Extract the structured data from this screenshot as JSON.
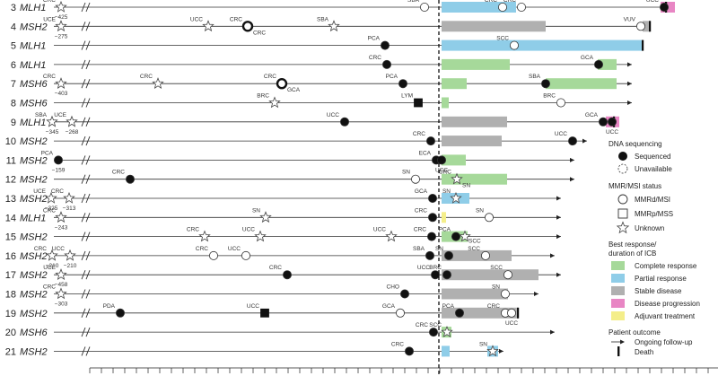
{
  "chart_data": {
    "type": "swimmer",
    "legend": {
      "dna_header": "DNA sequencing",
      "dna_items": [
        "Sequenced",
        "Unavailable"
      ],
      "mmr_header": "MMR/MSI status",
      "mmr_items": [
        "MMRd/MSI",
        "MMRp/MSS",
        "Unknown"
      ],
      "response_header": "Best response/\nduration of ICB",
      "response_items": [
        {
          "label": "Complete response",
          "color": "#a6d99a"
        },
        {
          "label": "Partial response",
          "color": "#8fcde8"
        },
        {
          "label": "Stable disease",
          "color": "#b0b0b0"
        },
        {
          "label": "Disease progression",
          "color": "#e886c4"
        },
        {
          "label": "Adjuvant treatment",
          "color": "#f4ee8a"
        }
      ],
      "outcome_header": "Patient outcome",
      "outcome_items": [
        "Ongoing follow-up",
        "Death"
      ]
    },
    "patients": [
      {
        "id": "3",
        "gene": "MLH1",
        "line_end": 752,
        "segments": [
          {
            "x0": 492,
            "x1": 575,
            "resp": "partial"
          },
          {
            "x0": 736,
            "x1": 752,
            "resp": "progression"
          }
        ],
        "end": "death",
        "end_x": 742,
        "events": [
          {
            "x": 68,
            "s": "star",
            "f": false,
            "l": "CRC",
            "n": "−425",
            "lp": "up"
          },
          {
            "x": 473,
            "s": "circle",
            "f": false,
            "l": "SBA",
            "lp": "up"
          },
          {
            "x": 560,
            "s": "circle",
            "f": false,
            "l": "CRC",
            "lp": "up"
          },
          {
            "x": 581,
            "s": "circle",
            "f": false,
            "l": "CRC",
            "lp": "up"
          },
          {
            "x": 740,
            "s": "circle",
            "f": true,
            "l": "UCC",
            "lp": "up"
          }
        ]
      },
      {
        "id": "4",
        "gene": "MSH2",
        "line_end": 724,
        "segments": [
          {
            "x0": 492,
            "x1": 608,
            "resp": "stable"
          },
          {
            "x0": 716,
            "x1": 724,
            "resp": "stable"
          }
        ],
        "end": "death",
        "end_x": 724,
        "events": [
          {
            "x": 68,
            "s": "star",
            "f": false,
            "l": "UCE",
            "n": "−275",
            "lp": "up"
          },
          {
            "x": 232,
            "s": "star",
            "f": false,
            "l": "UCC",
            "lp": "up"
          },
          {
            "x": 276,
            "s": "circle-thick",
            "f": false,
            "l": "CRC",
            "l2": "CRC",
            "lp": "up"
          },
          {
            "x": 372,
            "s": "star",
            "f": false,
            "l": "SBA",
            "lp": "up"
          },
          {
            "x": 714,
            "s": "circle",
            "f": false,
            "l": "VUV",
            "lp": "up"
          }
        ]
      },
      {
        "id": "5",
        "gene": "MLH1",
        "line_end": 716,
        "segments": [
          {
            "x0": 492,
            "x1": 716,
            "resp": "partial"
          }
        ],
        "end": "death",
        "end_x": 716,
        "events": [
          {
            "x": 429,
            "s": "circle",
            "f": true,
            "l": "PCA",
            "lp": "up"
          },
          {
            "x": 573,
            "s": "circle",
            "f": false,
            "l": "SCC",
            "lp": "up"
          }
        ]
      },
      {
        "id": "6",
        "gene": "MLH1",
        "line_end": 704,
        "segments": [
          {
            "x0": 492,
            "x1": 568,
            "resp": "complete"
          },
          {
            "x0": 666,
            "x1": 687,
            "resp": "complete"
          }
        ],
        "end": "arrow",
        "end_x": 704,
        "events": [
          {
            "x": 431,
            "s": "circle",
            "f": true,
            "l": "CRC",
            "lp": "up"
          },
          {
            "x": 667,
            "s": "circle",
            "f": true,
            "l": "GCA",
            "lp": "up"
          }
        ]
      },
      {
        "id": "7",
        "gene": "MSH6",
        "line_end": 704,
        "segments": [
          {
            "x0": 492,
            "x1": 520,
            "resp": "complete"
          },
          {
            "x0": 608,
            "x1": 687,
            "resp": "complete"
          }
        ],
        "end": "arrow",
        "end_x": 704,
        "events": [
          {
            "x": 68,
            "s": "star",
            "f": false,
            "l": "CRC",
            "n": "−403",
            "lp": "up"
          },
          {
            "x": 176,
            "s": "star",
            "f": false,
            "l": "CRC",
            "lp": "up"
          },
          {
            "x": 314,
            "s": "circle-thick",
            "f": false,
            "l": "CRC",
            "l2": "GCA",
            "lp": "up"
          },
          {
            "x": 449,
            "s": "circle",
            "f": true,
            "l": "PCA",
            "lp": "up"
          },
          {
            "x": 608,
            "s": "circle",
            "f": true,
            "l": "SBA",
            "lp": "up"
          }
        ]
      },
      {
        "id": "8",
        "gene": "MSH6",
        "line_end": 704,
        "segments": [
          {
            "x0": 492,
            "x1": 500,
            "resp": "complete"
          }
        ],
        "end": "arrow",
        "end_x": 704,
        "events": [
          {
            "x": 306,
            "s": "star",
            "f": false,
            "l": "BRC",
            "lp": "up"
          },
          {
            "x": 466,
            "s": "square",
            "f": true,
            "l": "LYM",
            "lp": "up"
          },
          {
            "x": 625,
            "s": "circle",
            "f": false,
            "l": "BRC",
            "lp": "up"
          }
        ]
      },
      {
        "id": "9",
        "gene": "MLH1",
        "line_end": 690,
        "segments": [
          {
            "x0": 492,
            "x1": 565,
            "resp": "stable"
          },
          {
            "x0": 675,
            "x1": 690,
            "resp": "progression"
          }
        ],
        "end": "death",
        "end_x": 684,
        "events": [
          {
            "x": 58,
            "s": "star",
            "f": false,
            "l": "SBA",
            "n": "−345",
            "lp": "up"
          },
          {
            "x": 80,
            "s": "star",
            "f": false,
            "l": "UCE",
            "n": "−268",
            "lp": "up"
          },
          {
            "x": 384,
            "s": "circle",
            "f": true,
            "l": "UCC",
            "lp": "up"
          },
          {
            "x": 672,
            "s": "circle",
            "f": true,
            "l": "GCA",
            "lp": "up"
          },
          {
            "x": 682,
            "s": "circle",
            "f": true,
            "l": "UCC",
            "lp": "down"
          }
        ]
      },
      {
        "id": "10",
        "gene": "MSH2",
        "line_end": 654,
        "segments": [
          {
            "x0": 492,
            "x1": 559,
            "resp": "stable"
          }
        ],
        "end": "arrow",
        "end_x": 654,
        "events": [
          {
            "x": 480,
            "s": "circle",
            "f": true,
            "l": "CRC",
            "lp": "up"
          },
          {
            "x": 638,
            "s": "circle",
            "f": true,
            "l": "UCC",
            "lp": "up"
          }
        ]
      },
      {
        "id": "11",
        "gene": "MSH2",
        "line_end": 640,
        "segments": [
          {
            "x0": 492,
            "x1": 519,
            "resp": "complete"
          }
        ],
        "end": "arrow",
        "end_x": 640,
        "events": [
          {
            "x": 65,
            "s": "circle",
            "f": true,
            "l": "PCA",
            "n": "−159",
            "lp": "up"
          },
          {
            "x": 486,
            "s": "circle",
            "f": true,
            "l": "ECA",
            "lp": "up"
          },
          {
            "x": 492,
            "s": "circle",
            "f": true,
            "l": "UCC",
            "lp": "down"
          }
        ]
      },
      {
        "id": "12",
        "gene": "MSH2",
        "line_end": 640,
        "segments": [
          {
            "x0": 492,
            "x1": 565,
            "resp": "complete"
          }
        ],
        "end": "arrow",
        "end_x": 640,
        "events": [
          {
            "x": 145,
            "s": "circle",
            "f": true,
            "l": "CRC",
            "lp": "up"
          },
          {
            "x": 463,
            "s": "circle",
            "f": false,
            "l": "SN",
            "lp": "up"
          },
          {
            "x": 509,
            "s": "star",
            "f": false,
            "l": "CRC",
            "l2": "SN",
            "lp": "up"
          }
        ]
      },
      {
        "id": "13",
        "gene": "MSH2",
        "line_end": 625,
        "segments": [
          {
            "x0": 492,
            "x1": 523,
            "resp": "partial"
          }
        ],
        "end": "arrow",
        "end_x": 625,
        "events": [
          {
            "x": 57,
            "s": "star",
            "f": false,
            "l": "UCE",
            "n": "−325",
            "lp": "up"
          },
          {
            "x": 77,
            "s": "star",
            "f": false,
            "l": "CRC",
            "n": "−313",
            "lp": "up"
          },
          {
            "x": 482,
            "s": "circle",
            "f": true,
            "l": "GCA",
            "lp": "up"
          },
          {
            "x": 508,
            "s": "star",
            "f": false,
            "l": "SN",
            "lp": "up"
          }
        ]
      },
      {
        "id": "14",
        "gene": "MLH1",
        "line_end": 625,
        "segments": [
          {
            "x0": 492,
            "x1": 497,
            "resp": "adjuvant"
          }
        ],
        "end": "arrow",
        "end_x": 625,
        "events": [
          {
            "x": 68,
            "s": "star",
            "f": false,
            "l": "CRC",
            "n": "−243",
            "lp": "up"
          },
          {
            "x": 296,
            "s": "star",
            "f": false,
            "l": "SN",
            "lp": "up"
          },
          {
            "x": 482,
            "s": "circle",
            "f": true,
            "l": "CRC",
            "lp": "up"
          },
          {
            "x": 545,
            "s": "circle",
            "f": false,
            "l": "SN",
            "lp": "up"
          }
        ]
      },
      {
        "id": "15",
        "gene": "MSH2",
        "line_end": 625,
        "segments": [
          {
            "x0": 492,
            "x1": 521,
            "resp": "complete"
          }
        ],
        "end": "arrow",
        "end_x": 625,
        "events": [
          {
            "x": 228,
            "s": "star",
            "f": false,
            "l": "CRC",
            "lp": "up"
          },
          {
            "x": 290,
            "s": "star",
            "f": false,
            "l": "UCC",
            "lp": "up"
          },
          {
            "x": 436,
            "s": "star",
            "f": false,
            "l": "UCC",
            "lp": "up"
          },
          {
            "x": 481,
            "s": "circle",
            "f": true,
            "l": "CRC",
            "lp": "up"
          },
          {
            "x": 508,
            "s": "circle",
            "f": true,
            "l": "PCA",
            "lp": "up"
          },
          {
            "x": 518,
            "s": "star",
            "f": false,
            "l": "SCC",
            "lp": "right"
          }
        ]
      },
      {
        "id": "16",
        "gene": "MSH2",
        "line_end": 618,
        "segments": [
          {
            "x0": 492,
            "x1": 570,
            "resp": "stable"
          }
        ],
        "end": "arrow",
        "end_x": 618,
        "events": [
          {
            "x": 58,
            "s": "star",
            "f": false,
            "l": "CRC",
            "n": "−210",
            "lp": "up"
          },
          {
            "x": 78,
            "s": "star",
            "f": false,
            "l": "UCC",
            "n": "−210",
            "lp": "up"
          },
          {
            "x": 238,
            "s": "circle",
            "f": false,
            "l": "CRC",
            "lp": "up"
          },
          {
            "x": 274,
            "s": "circle",
            "f": false,
            "l": "UCC",
            "lp": "up"
          },
          {
            "x": 479,
            "s": "circle",
            "f": true,
            "l": "SBA",
            "lp": "up"
          },
          {
            "x": 500,
            "s": "circle",
            "f": true,
            "l": "SN",
            "lp": "up"
          },
          {
            "x": 541,
            "s": "circle",
            "f": false,
            "l": "SCC",
            "lp": "up"
          }
        ]
      },
      {
        "id": "17",
        "gene": "MSH2",
        "line_end": 625,
        "segments": [
          {
            "x0": 492,
            "x1": 600,
            "resp": "stable"
          }
        ],
        "end": "arrow",
        "end_x": 625,
        "events": [
          {
            "x": 68,
            "s": "star",
            "f": false,
            "l": "UCE",
            "n": "−458",
            "lp": "up"
          },
          {
            "x": 320,
            "s": "circle",
            "f": true,
            "l": "CRC",
            "lp": "up"
          },
          {
            "x": 485,
            "s": "circle",
            "f": true,
            "l": "UCC",
            "lp": "up"
          },
          {
            "x": 498,
            "s": "circle",
            "f": true,
            "l": "BRC",
            "lp": "up"
          },
          {
            "x": 566,
            "s": "circle",
            "f": false,
            "l": "SCC",
            "lp": "up"
          }
        ]
      },
      {
        "id": "18",
        "gene": "MSH2",
        "line_end": 600,
        "segments": [
          {
            "x0": 492,
            "x1": 566,
            "resp": "stable"
          }
        ],
        "end": "arrow",
        "end_x": 600,
        "events": [
          {
            "x": 68,
            "s": "star",
            "f": false,
            "l": "CRC",
            "n": "−303",
            "lp": "up"
          },
          {
            "x": 451,
            "s": "circle",
            "f": true,
            "l": "CHO",
            "lp": "up"
          },
          {
            "x": 563,
            "s": "circle",
            "f": false,
            "l": "SN",
            "lp": "up"
          }
        ]
      },
      {
        "id": "19",
        "gene": "MSH2",
        "line_end": 577,
        "segments": [
          {
            "x0": 492,
            "x1": 577,
            "resp": "stable"
          }
        ],
        "end": "death",
        "end_x": 577,
        "events": [
          {
            "x": 134,
            "s": "circle",
            "f": true,
            "l": "PDA",
            "lp": "up"
          },
          {
            "x": 295,
            "s": "square",
            "f": true,
            "l": "UCC",
            "lp": "up"
          },
          {
            "x": 446,
            "s": "circle",
            "f": false,
            "l": "GCA",
            "lp": "up"
          },
          {
            "x": 512,
            "s": "circle",
            "f": true,
            "l": "PCA",
            "lp": "up"
          },
          {
            "x": 563,
            "s": "circle",
            "f": false,
            "l": "CRC",
            "lp": "up"
          },
          {
            "x": 570,
            "s": "circle",
            "f": false,
            "l": "UCC",
            "lp": "down"
          }
        ]
      },
      {
        "id": "20",
        "gene": "MSH6",
        "line_end": 618,
        "segments": [
          {
            "x0": 492,
            "x1": 503,
            "resp": "complete"
          }
        ],
        "end": "arrow",
        "end_x": 618,
        "events": [
          {
            "x": 483,
            "s": "circle",
            "f": true,
            "l": "CRC",
            "lp": "up"
          },
          {
            "x": 498,
            "s": "star",
            "f": false,
            "l": "SCC",
            "lp": "up"
          }
        ]
      },
      {
        "id": "21",
        "gene": "MSH2",
        "line_end": 561,
        "segments": [
          {
            "x0": 492,
            "x1": 501,
            "resp": "partial"
          },
          {
            "x0": 543,
            "x1": 555,
            "resp": "partial"
          }
        ],
        "end": "arrow",
        "end_x": 561,
        "events": [
          {
            "x": 456,
            "s": "circle",
            "f": true,
            "l": "CRC",
            "lp": "up"
          },
          {
            "x": 549,
            "s": "star",
            "f": false,
            "l": "SN",
            "lp": "up"
          }
        ]
      }
    ]
  }
}
